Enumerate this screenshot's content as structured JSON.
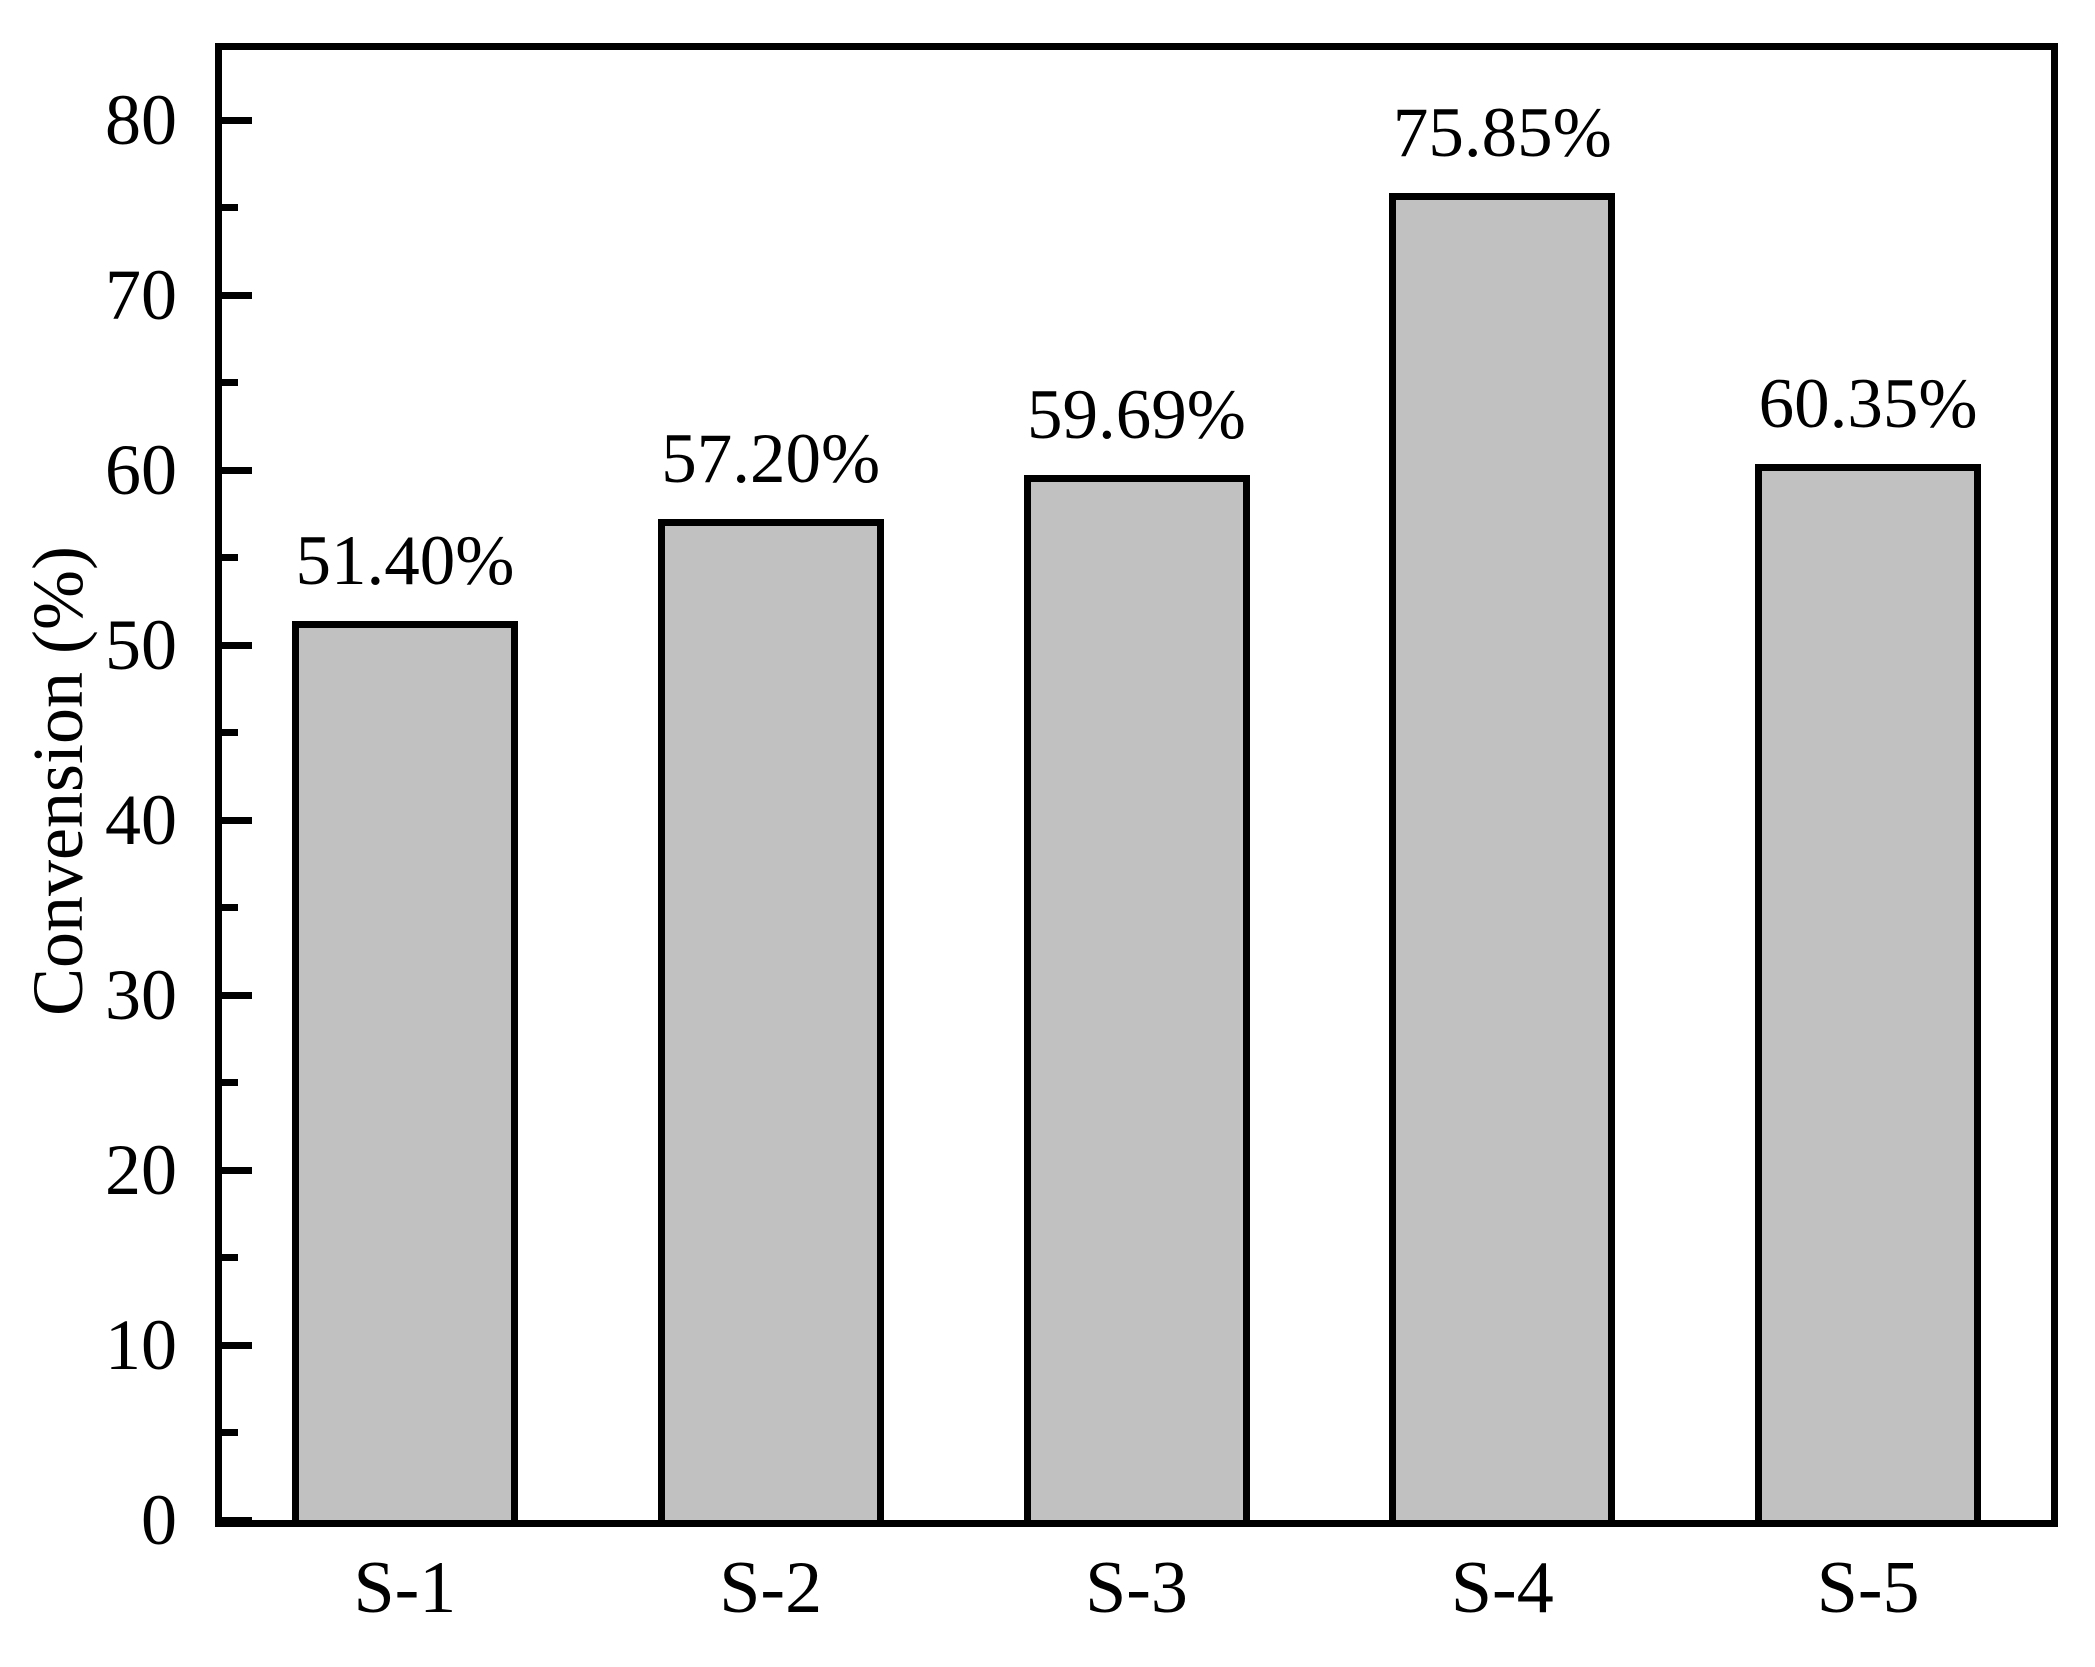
{
  "chart_data": {
    "type": "bar",
    "title": "",
    "ylabel": "Convension (%)",
    "xlabel": "",
    "categories": [
      "S-1",
      "S-2",
      "S-3",
      "S-4",
      "S-5"
    ],
    "values": [
      51.4,
      57.2,
      59.69,
      75.85,
      60.35
    ],
    "data_labels": [
      "51.40%",
      "57.20%",
      "59.69%",
      "75.85%",
      "60.35%"
    ],
    "ylim": [
      0,
      84
    ],
    "yticks": [
      0,
      10,
      20,
      30,
      40,
      50,
      60,
      70,
      80
    ],
    "y_minor_interval": 5,
    "grid": false,
    "legend": null,
    "frame": "full-box",
    "tick_direction": "in",
    "bar_color": "#c1c1c2",
    "bar_border_color": "#000000",
    "background_color": "#ffffff",
    "text_color": "#000000"
  }
}
